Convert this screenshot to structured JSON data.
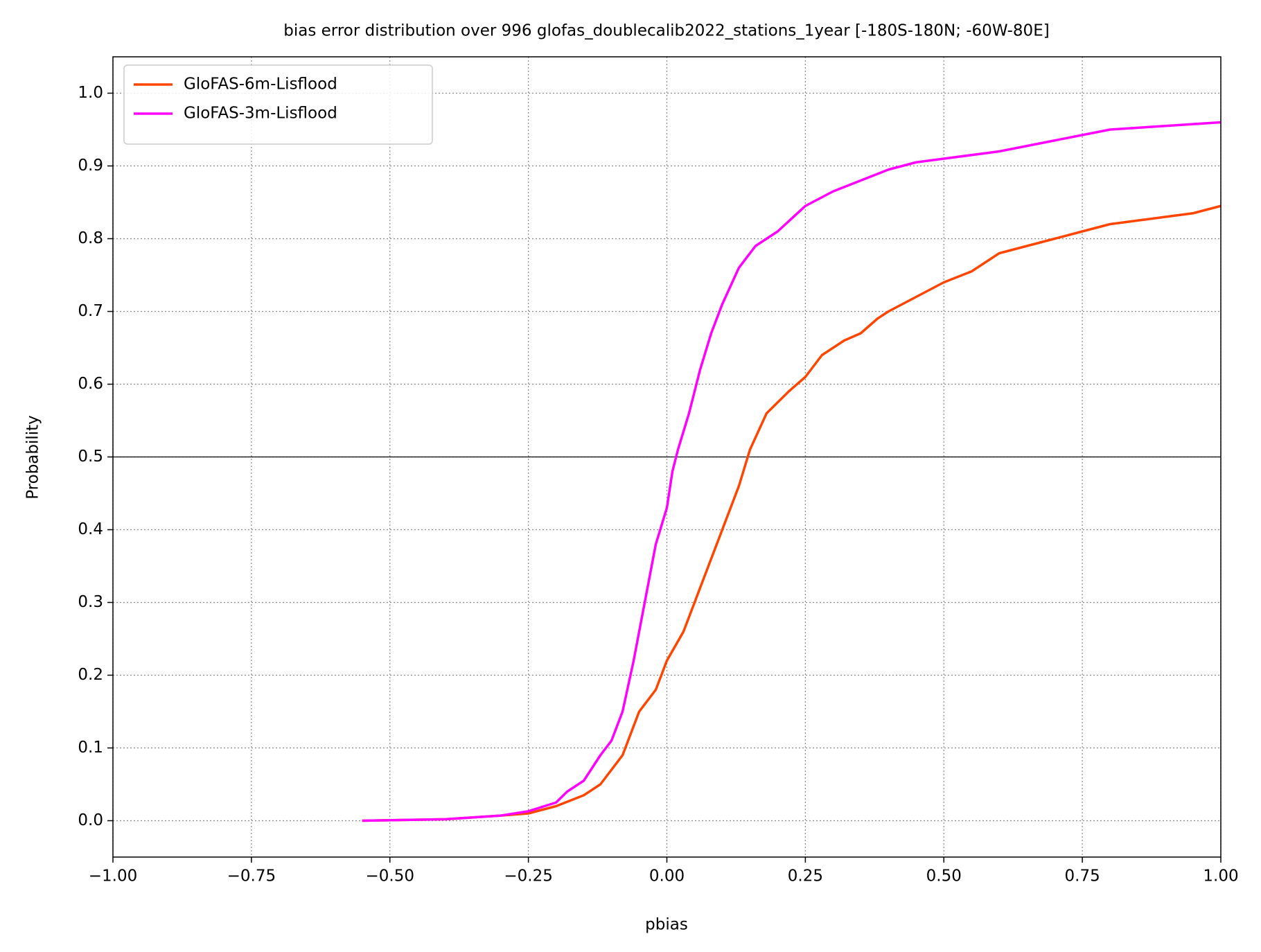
{
  "chart_data": {
    "type": "line",
    "title": "bias error distribution over 996 glofas_doublecalib2022_stations_1year [-180S-180N; -60W-80E]",
    "x_label": "pbias",
    "y_label": "Probability",
    "xlim": [
      -1.0,
      1.0
    ],
    "ylim": [
      -0.05,
      1.05
    ],
    "xticks": [
      {
        "value": -1.0,
        "label": "−1.00"
      },
      {
        "value": -0.75,
        "label": "−0.75"
      },
      {
        "value": -0.5,
        "label": "−0.50"
      },
      {
        "value": -0.25,
        "label": "−0.25"
      },
      {
        "value": 0,
        "label": "0.00"
      },
      {
        "value": 0.25,
        "label": "0.25"
      },
      {
        "value": 0.5,
        "label": "0.50"
      },
      {
        "value": 0.75,
        "label": "0.75"
      },
      {
        "value": 1.0,
        "label": "1.00"
      }
    ],
    "yticks": [
      {
        "value": 0,
        "label": "0.0"
      },
      0.1,
      0.2,
      0.3,
      0.4,
      0.5,
      0.6,
      0.7,
      0.8,
      0.9,
      {
        "value": 1.0,
        "label": "1.0"
      }
    ],
    "grid": true,
    "hline": 0.5,
    "legend": "upper left",
    "series": [
      {
        "name": "GloFAS-6m-Lisflood",
        "color": "#ff4500",
        "x": [
          -0.55,
          -0.4,
          -0.3,
          -0.25,
          -0.2,
          -0.15,
          -0.12,
          -0.08,
          -0.05,
          -0.02,
          0,
          0.03,
          0.05,
          0.08,
          0.1,
          0.13,
          0.15,
          0.18,
          0.22,
          0.25,
          0.28,
          0.32,
          0.35,
          0.38,
          0.4,
          0.45,
          0.5,
          0.55,
          0.6,
          0.65,
          0.7,
          0.75,
          0.8,
          0.85,
          0.9,
          0.95,
          1.0
        ],
        "values": [
          0,
          0.002,
          0.007,
          0.01,
          0.02,
          0.035,
          0.05,
          0.09,
          0.15,
          0.18,
          0.22,
          0.26,
          0.3,
          0.36,
          0.4,
          0.46,
          0.51,
          0.56,
          0.59,
          0.61,
          0.64,
          0.66,
          0.67,
          0.69,
          0.7,
          0.72,
          0.74,
          0.755,
          0.78,
          0.79,
          0.8,
          0.81,
          0.82,
          0.825,
          0.83,
          0.835,
          0.845
        ]
      },
      {
        "name": "GloFAS-3m-Lisflood",
        "color": "#ff00ff",
        "x": [
          -0.55,
          -0.4,
          -0.3,
          -0.25,
          -0.2,
          -0.18,
          -0.15,
          -0.12,
          -0.1,
          -0.08,
          -0.06,
          -0.04,
          -0.02,
          0,
          0.01,
          0.02,
          0.04,
          0.06,
          0.08,
          0.1,
          0.13,
          0.16,
          0.2,
          0.25,
          0.3,
          0.35,
          0.4,
          0.45,
          0.5,
          0.6,
          0.7,
          0.8,
          0.9,
          1.0
        ],
        "values": [
          0,
          0.002,
          0.007,
          0.013,
          0.025,
          0.04,
          0.055,
          0.09,
          0.11,
          0.15,
          0.22,
          0.3,
          0.38,
          0.43,
          0.48,
          0.51,
          0.56,
          0.62,
          0.67,
          0.71,
          0.76,
          0.79,
          0.81,
          0.845,
          0.865,
          0.88,
          0.895,
          0.905,
          0.91,
          0.92,
          0.935,
          0.95,
          0.955,
          0.96
        ]
      }
    ]
  }
}
